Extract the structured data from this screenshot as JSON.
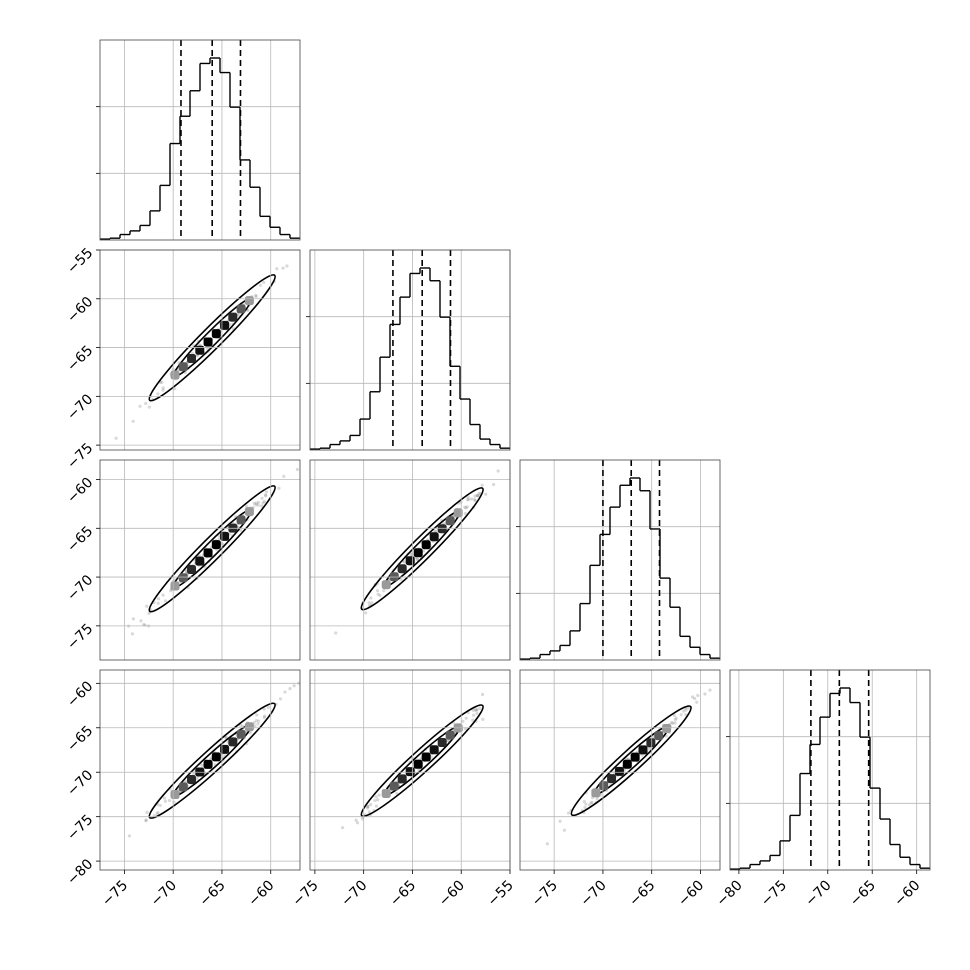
{
  "chart_data": {
    "type": "corner",
    "n_params": 4,
    "grid": true,
    "colors": {
      "line": "#000000",
      "grid": "#b8b8b8",
      "frame": "#444444",
      "points": "#808080"
    },
    "params": [
      {
        "range": [
          -77.5,
          -57.0
        ],
        "ticks": [
          -75,
          -70,
          -65,
          -60
        ],
        "quantiles": [
          -69.2,
          -66.0,
          -63.1
        ],
        "hist": [
          0.005,
          0.01,
          0.03,
          0.05,
          0.08,
          0.16,
          0.3,
          0.53,
          0.68,
          0.82,
          0.97,
          1.0,
          0.92,
          0.73,
          0.44,
          0.29,
          0.13,
          0.07,
          0.03,
          0.01
        ]
      },
      {
        "range": [
          -75.5,
          -55.0
        ],
        "ticks": [
          -75,
          -70,
          -65,
          -60,
          -55
        ],
        "quantiles": [
          -67.0,
          -64.0,
          -61.1
        ],
        "hist": [
          0.005,
          0.01,
          0.03,
          0.05,
          0.08,
          0.17,
          0.32,
          0.51,
          0.69,
          0.84,
          0.97,
          1.0,
          0.93,
          0.73,
          0.46,
          0.28,
          0.14,
          0.06,
          0.03,
          0.01
        ]
      },
      {
        "range": [
          -78.5,
          -58.0
        ],
        "ticks": [
          -75,
          -70,
          -65,
          -60
        ],
        "quantiles": [
          -70.0,
          -67.1,
          -64.2
        ],
        "hist": [
          0.005,
          0.01,
          0.03,
          0.05,
          0.08,
          0.16,
          0.31,
          0.52,
          0.69,
          0.84,
          0.96,
          1.0,
          0.93,
          0.72,
          0.45,
          0.29,
          0.13,
          0.07,
          0.03,
          0.01
        ]
      },
      {
        "range": [
          -81.0,
          -58.5
        ],
        "ticks": [
          -80,
          -75,
          -70,
          -65,
          -60
        ],
        "quantiles": [
          -71.9,
          -68.7,
          -65.4
        ],
        "hist": [
          0.005,
          0.01,
          0.03,
          0.05,
          0.08,
          0.16,
          0.3,
          0.53,
          0.69,
          0.84,
          0.97,
          1.0,
          0.92,
          0.73,
          0.45,
          0.28,
          0.14,
          0.07,
          0.03,
          0.01
        ]
      }
    ]
  }
}
